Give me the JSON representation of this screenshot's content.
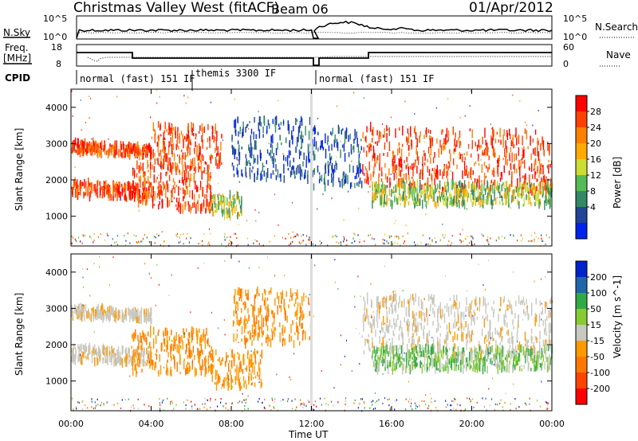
{
  "header": {
    "title": "Christmas Valley West (fitACF)",
    "beam": "Beam 06",
    "date": "01/Apr/2012"
  },
  "nsky_panel": {
    "left_label": "N.Sky",
    "left_ticks": [
      "10^5",
      "10^0"
    ],
    "right_ticks": [
      "10^5",
      "10^0"
    ],
    "right_label": "N.Search"
  },
  "freq_panel": {
    "left_label_line1": "Freq.",
    "left_label_line2": "[MHz]",
    "left_ticks": [
      "18",
      "8"
    ],
    "right_ticks": [
      "60",
      "0"
    ],
    "right_label": "Nave"
  },
  "cpid": {
    "label": "CPID",
    "segments": [
      "normal (fast) 151 IF",
      "themis 3300 IF",
      "normal (fast) 151 IF"
    ]
  },
  "axes": {
    "ylabel": "Slant Range [km]",
    "yticks": [
      "4000",
      "3000",
      "2000",
      "1000"
    ],
    "xticks": [
      "00:00",
      "04:00",
      "08:00",
      "12:00",
      "16:00",
      "20:00",
      "00:00"
    ],
    "xlabel": "Time UT"
  },
  "power_colorbar": {
    "title": "Power [dB]",
    "ticks": [
      "28",
      "24",
      "20",
      "16",
      "12",
      "8",
      "4"
    ],
    "colors": [
      "#ff0000",
      "#ff4000",
      "#ff8000",
      "#ffaa00",
      "#ccdd33",
      "#55bb55",
      "#338866",
      "#224499",
      "#0022ee"
    ]
  },
  "velocity_colorbar": {
    "title": "Velocity [m s^-1]",
    "ticks": [
      "200",
      "100",
      "50",
      "15",
      "-15",
      "-50",
      "-100",
      "-200"
    ],
    "colors": [
      "#0022cc",
      "#2266aa",
      "#33aa44",
      "#88cc33",
      "#c8c8c0",
      "#ff9900",
      "#ff7700",
      "#ff4400",
      "#ff0000"
    ]
  },
  "chart_data": [
    {
      "type": "heatmap",
      "name": "Power",
      "x_range_hours": [
        0,
        24
      ],
      "y_range_km": [
        180,
        4500
      ],
      "echo_bands": [
        {
          "t": [
            0.0,
            4.0
          ],
          "range_km": [
            1500,
            1900
          ],
          "level": "red"
        },
        {
          "t": [
            0.0,
            4.0
          ],
          "range_km": [
            2700,
            3000
          ],
          "level": "red"
        },
        {
          "t": [
            3.0,
            7.0
          ],
          "range_km": [
            1200,
            2400
          ],
          "level": "red"
        },
        {
          "t": [
            4.0,
            7.5
          ],
          "range_km": [
            2300,
            3500
          ],
          "level": "red"
        },
        {
          "t": [
            7.0,
            8.5
          ],
          "range_km": [
            1000,
            1600
          ],
          "level": "green"
        },
        {
          "t": [
            8.0,
            12.0
          ],
          "range_km": [
            2000,
            3700
          ],
          "level": "blue"
        },
        {
          "t": [
            12.0,
            14.5
          ],
          "range_km": [
            1800,
            3400
          ],
          "level": "blue"
        },
        {
          "t": [
            14.5,
            24.0
          ],
          "range_km": [
            1700,
            3400
          ],
          "level": "red"
        },
        {
          "t": [
            15.0,
            24.0
          ],
          "range_km": [
            1300,
            1900
          ],
          "level": "green"
        }
      ]
    },
    {
      "type": "heatmap",
      "name": "Velocity",
      "x_range_hours": [
        0,
        24
      ],
      "y_range_km": [
        180,
        4500
      ],
      "echo_bands": [
        {
          "t": [
            0.0,
            4.0
          ],
          "range_km": [
            1500,
            1900
          ],
          "level": "grey"
        },
        {
          "t": [
            0.0,
            4.0
          ],
          "range_km": [
            2700,
            3000
          ],
          "level": "grey"
        },
        {
          "t": [
            3.0,
            7.0
          ],
          "range_km": [
            1200,
            2400
          ],
          "level": "orange"
        },
        {
          "t": [
            7.0,
            9.5
          ],
          "range_km": [
            800,
            1800
          ],
          "level": "orange"
        },
        {
          "t": [
            8.0,
            12.0
          ],
          "range_km": [
            2000,
            3500
          ],
          "level": "orange"
        },
        {
          "t": [
            14.5,
            24.0
          ],
          "range_km": [
            1700,
            3300
          ],
          "level": "grey"
        },
        {
          "t": [
            15.0,
            24.0
          ],
          "range_km": [
            1300,
            1900
          ],
          "level": "green"
        }
      ]
    }
  ]
}
